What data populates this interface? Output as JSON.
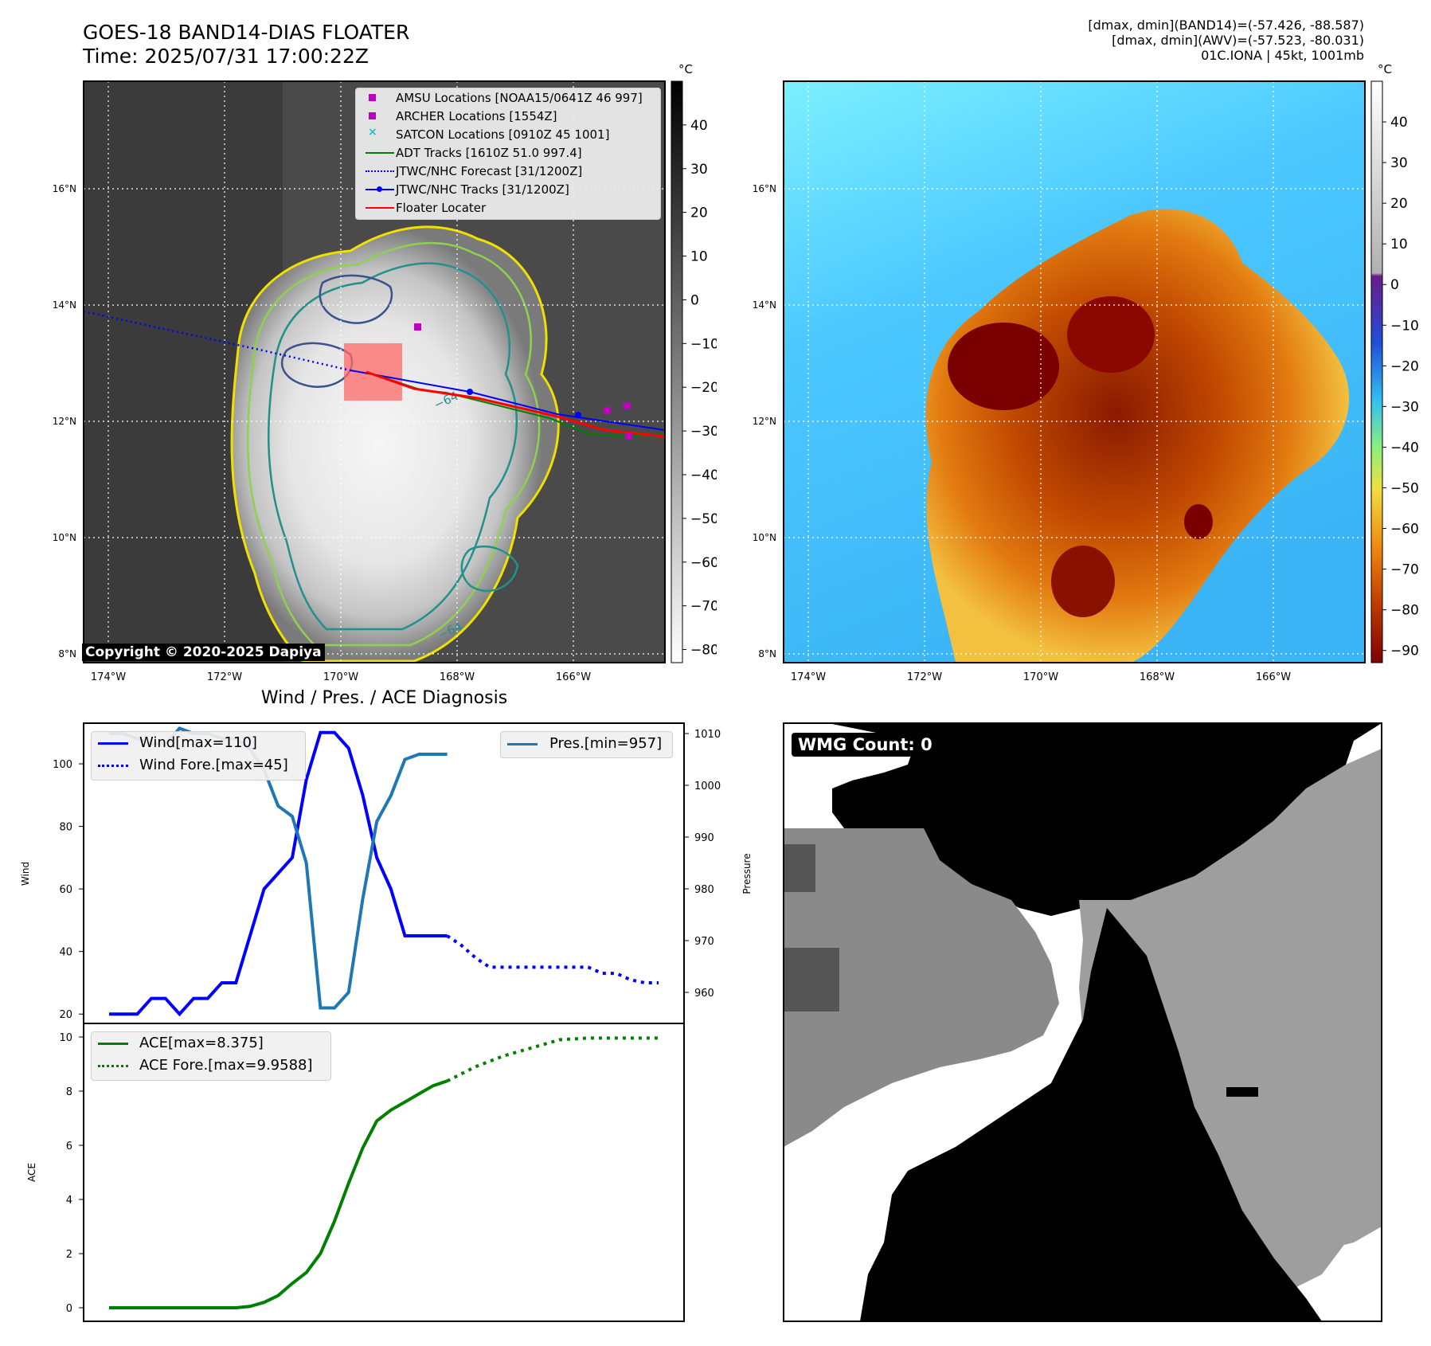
{
  "header": {
    "title_line1": "GOES-18 BAND14-DIAS FLOATER",
    "title_line2": "Time: 2025/07/31 17:00:22Z",
    "right_line1": "[dmax, dmin](BAND14)=(-57.426, -88.587)",
    "right_line2": "[dmax, dmin](AWV)=(-57.523, -80.031)",
    "right_line3": "01C.IONA | 45kt, 1001mb"
  },
  "map_ir": {
    "colorbar_unit": "°C",
    "colorbar_ticks": [
      "40",
      "30",
      "20",
      "10",
      "0",
      "−10",
      "−20",
      "−30",
      "−40",
      "−50",
      "−60",
      "−70",
      "−80"
    ],
    "lat_labels": [
      "16°N",
      "14°N",
      "12°N",
      "10°N",
      "8°N"
    ],
    "lon_labels": [
      "174°W",
      "172°W",
      "170°W",
      "168°W",
      "166°W"
    ],
    "contour_label": "−64",
    "copyright": "Copyright © 2020-2025 Dapiya",
    "legend": [
      {
        "label": "AMSU Locations [NOAA15/0641Z 46 997]",
        "marker": "square",
        "color": "#c000c0"
      },
      {
        "label": "ARCHER Locations [1554Z]",
        "marker": "square",
        "color": "#c000c0"
      },
      {
        "label": "SATCON Locations [0910Z 45 1001]",
        "marker": "x",
        "color": "#20c0c0"
      },
      {
        "label": "ADT Tracks [1610Z 51.0 997.4]",
        "marker": "line",
        "color": "#008000"
      },
      {
        "label": "JTWC/NHC Forecast [31/1200Z]",
        "marker": "dotted",
        "color": "#0000ff"
      },
      {
        "label": "JTWC/NHC Tracks [31/1200Z]",
        "marker": "line-dot",
        "color": "#0000ff"
      },
      {
        "label": "Floater Locater",
        "marker": "line",
        "color": "#ff0000"
      }
    ]
  },
  "map_awv": {
    "colorbar_unit": "°C",
    "colorbar_ticks": [
      "40",
      "30",
      "20",
      "10",
      "0",
      "−10",
      "−20",
      "−30",
      "−40",
      "−50",
      "−60",
      "−70",
      "−80",
      "−90"
    ],
    "lat_labels": [
      "16°N",
      "14°N",
      "12°N",
      "10°N",
      "8°N"
    ],
    "lon_labels": [
      "174°W",
      "172°W",
      "170°W",
      "168°W",
      "166°W"
    ]
  },
  "wmg": {
    "label": "WMG Count: 0"
  },
  "chart_data": [
    {
      "type": "line",
      "title": "Wind / Pres. / ACE Diagnosis",
      "ylabel": "Wind",
      "y2label": "Pressure",
      "ylim": [
        17,
        113
      ],
      "y2lim": [
        954,
        1012
      ],
      "yticks": [
        20,
        40,
        60,
        80,
        100
      ],
      "y2ticks": [
        960,
        970,
        980,
        990,
        1000,
        1010
      ],
      "series": [
        {
          "name": "Wind[max=110]",
          "color": "#0000ff",
          "style": "solid",
          "axis": "left",
          "x": [
            0,
            1,
            2,
            3,
            4,
            5,
            6,
            7,
            8,
            9,
            10,
            11,
            12,
            13,
            14,
            15,
            16,
            17,
            18,
            19,
            20,
            21,
            22,
            23,
            24
          ],
          "values": [
            20,
            20,
            20,
            25,
            25,
            20,
            25,
            25,
            30,
            30,
            45,
            60,
            65,
            70,
            95,
            110,
            110,
            105,
            90,
            70,
            60,
            45,
            45,
            45,
            45
          ]
        },
        {
          "name": "Wind Fore.[max=45]",
          "color": "#0000ff",
          "style": "dotted",
          "axis": "left",
          "x": [
            24,
            25,
            26,
            27,
            28,
            29,
            30,
            31,
            32,
            33,
            34,
            35,
            36,
            37,
            38,
            39
          ],
          "values": [
            45,
            42,
            38,
            35,
            35,
            35,
            35,
            35,
            35,
            35,
            35,
            33,
            33,
            31,
            30,
            30
          ]
        },
        {
          "name": "Pres.[min=957]",
          "color": "#1f77b4",
          "style": "solid",
          "axis": "right",
          "x": [
            0,
            1,
            2,
            3,
            4,
            5,
            6,
            7,
            8,
            9,
            10,
            11,
            12,
            13,
            14,
            15,
            16,
            17,
            18,
            19,
            20,
            21,
            22,
            23,
            24
          ],
          "values": [
            1010,
            1010,
            1009,
            1008,
            1008,
            1011,
            1010,
            1010,
            1009,
            1009,
            1007,
            1003,
            996,
            994,
            985,
            957,
            957,
            960,
            978,
            993,
            998,
            1005,
            1006,
            1006,
            1006
          ]
        }
      ]
    },
    {
      "type": "line",
      "ylabel": "ACE",
      "ylim": [
        -0.5,
        10.5
      ],
      "yticks": [
        0,
        2,
        4,
        6,
        8,
        10
      ],
      "series": [
        {
          "name": "ACE[max=8.375]",
          "color": "#008000",
          "style": "solid",
          "x": [
            0,
            1,
            2,
            3,
            4,
            5,
            6,
            7,
            8,
            9,
            10,
            11,
            12,
            13,
            14,
            15,
            16,
            17,
            18,
            19,
            20,
            21,
            22,
            23,
            24
          ],
          "values": [
            0,
            0,
            0,
            0,
            0,
            0,
            0,
            0,
            0,
            0,
            0.05,
            0.2,
            0.45,
            0.9,
            1.3,
            2.0,
            3.2,
            4.6,
            5.9,
            6.9,
            7.3,
            7.6,
            7.9,
            8.2,
            8.375
          ]
        },
        {
          "name": "ACE Fore.[max=9.9588]",
          "color": "#008000",
          "style": "dotted",
          "x": [
            24,
            26,
            28,
            30,
            32,
            34,
            36,
            39
          ],
          "values": [
            8.375,
            8.9,
            9.3,
            9.6,
            9.9,
            9.96,
            9.96,
            9.96
          ]
        }
      ]
    }
  ]
}
